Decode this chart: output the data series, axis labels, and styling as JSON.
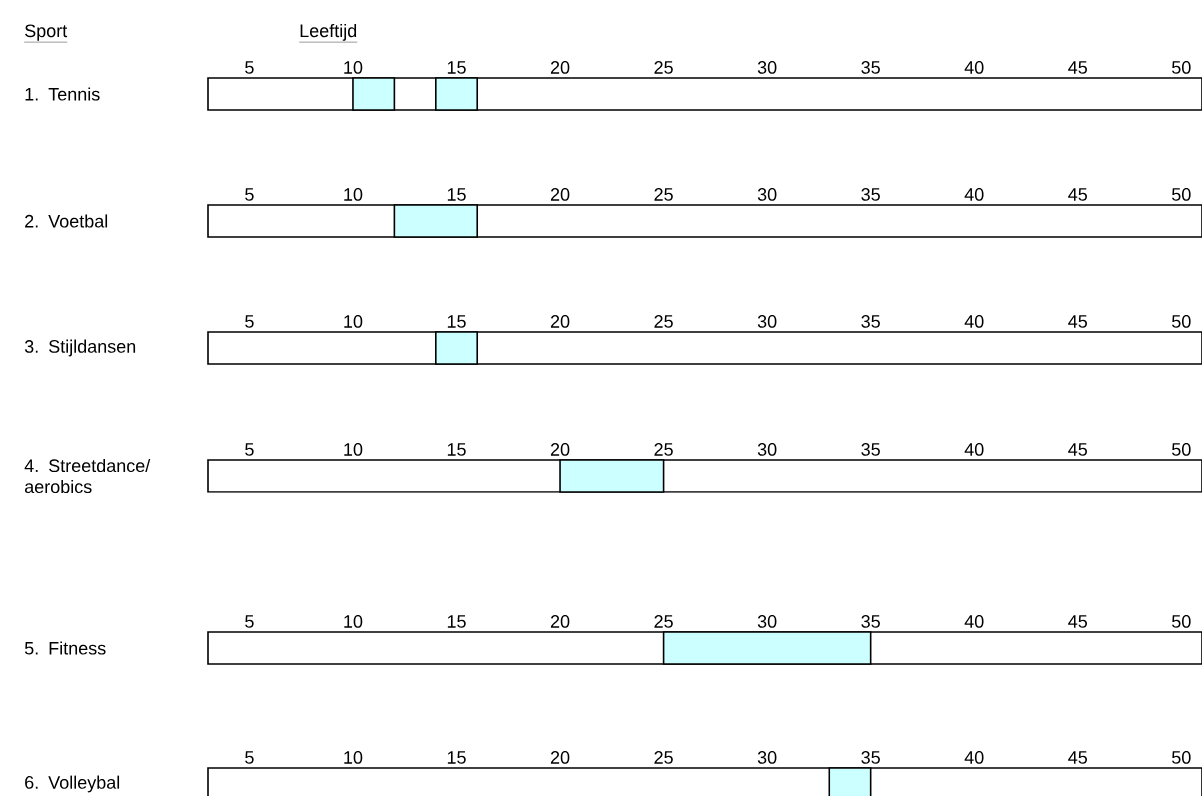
{
  "chart_data": [
    {
      "type": "bar",
      "orientation": "horizontal",
      "ylabel": "Sport",
      "xlabel": "Leeftijd",
      "categories": [
        "1. Tennis"
      ],
      "xlim": [
        3,
        51
      ],
      "xticks": [
        5,
        10,
        15,
        20,
        25,
        30,
        35,
        40,
        45,
        50
      ],
      "series": [
        {
          "color": "#ccffff",
          "base": [
            10
          ],
          "values": [
            2
          ]
        },
        {
          "color": "#ccffff",
          "base": [
            14
          ],
          "values": [
            2
          ]
        }
      ]
    },
    {
      "type": "bar",
      "orientation": "horizontal",
      "categories": [
        "2. Voetbal"
      ],
      "xlim": [
        3,
        51
      ],
      "xticks": [
        5,
        10,
        15,
        20,
        25,
        30,
        35,
        40,
        45,
        50
      ],
      "series": [
        {
          "color": "#ccffff",
          "base": [
            12
          ],
          "values": [
            4
          ]
        }
      ]
    },
    {
      "type": "bar",
      "orientation": "horizontal",
      "categories": [
        "3. Stijldansen"
      ],
      "xlim": [
        3,
        51
      ],
      "xticks": [
        5,
        10,
        15,
        20,
        25,
        30,
        35,
        40,
        45,
        50
      ],
      "series": [
        {
          "color": "#ccffff",
          "base": [
            14
          ],
          "values": [
            2
          ]
        }
      ]
    },
    {
      "type": "bar",
      "orientation": "horizontal",
      "categories": [
        "4. Streetdance/ aerobics"
      ],
      "xlim": [
        3,
        51
      ],
      "xticks": [
        5,
        10,
        15,
        20,
        25,
        30,
        35,
        40,
        45,
        50
      ],
      "series": [
        {
          "color": "#ccffff",
          "base": [
            20
          ],
          "values": [
            5
          ]
        }
      ]
    },
    {
      "type": "bar",
      "orientation": "horizontal",
      "categories": [
        "5. Fitness"
      ],
      "xlim": [
        3,
        51
      ],
      "xticks": [
        5,
        10,
        15,
        20,
        25,
        30,
        35,
        40,
        45,
        50
      ],
      "series": [
        {
          "color": "#ccffff",
          "base": [
            25
          ],
          "values": [
            10
          ]
        }
      ]
    },
    {
      "type": "bar",
      "orientation": "horizontal",
      "categories": [
        "6. Volleybal"
      ],
      "xlim": [
        3,
        51
      ],
      "xticks": [
        5,
        10,
        15,
        20,
        25,
        30,
        35,
        40,
        45,
        50
      ],
      "series": [
        {
          "color": "#ccffff",
          "base": [
            33
          ],
          "values": [
            2
          ]
        }
      ]
    }
  ]
}
